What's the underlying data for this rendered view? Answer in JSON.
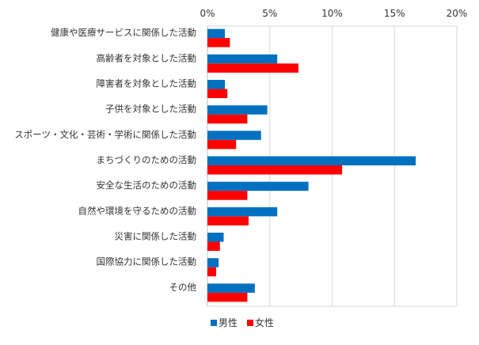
{
  "chart_data": {
    "type": "bar",
    "orientation": "horizontal",
    "categories": [
      "健康や医療サービスに関係した活動",
      "高齢者を対象とした活動",
      "障害者を対象とした活動",
      "子供を対象とした活動",
      "スポーツ・文化・芸術・学術に関係した活動",
      "まちづくりのための活動",
      "安全な生活のための活動",
      "自然や環境を守るための活動",
      "災害に関係した活動",
      "国際協力に関係した活動",
      "その他"
    ],
    "series": [
      {
        "name": "男性",
        "color": "#0070C0",
        "values": [
          1.4,
          5.6,
          1.4,
          4.8,
          4.3,
          16.7,
          8.1,
          5.6,
          1.3,
          0.9,
          3.8
        ]
      },
      {
        "name": "女性",
        "color": "#FF0000",
        "values": [
          1.8,
          7.3,
          1.6,
          3.2,
          2.3,
          10.8,
          3.2,
          3.3,
          1.0,
          0.7,
          3.2
        ]
      }
    ],
    "xlim": [
      0,
      20
    ],
    "x_ticks": [
      "0%",
      "5%",
      "10%",
      "15%",
      "20%"
    ],
    "x_tick_values": [
      0,
      5,
      10,
      15,
      20
    ],
    "grid": true,
    "axis_position": "top",
    "legend": {
      "placement": "bottom-center",
      "entries": [
        "男性",
        "女性"
      ]
    },
    "title": "",
    "xlabel": "",
    "ylabel": ""
  }
}
